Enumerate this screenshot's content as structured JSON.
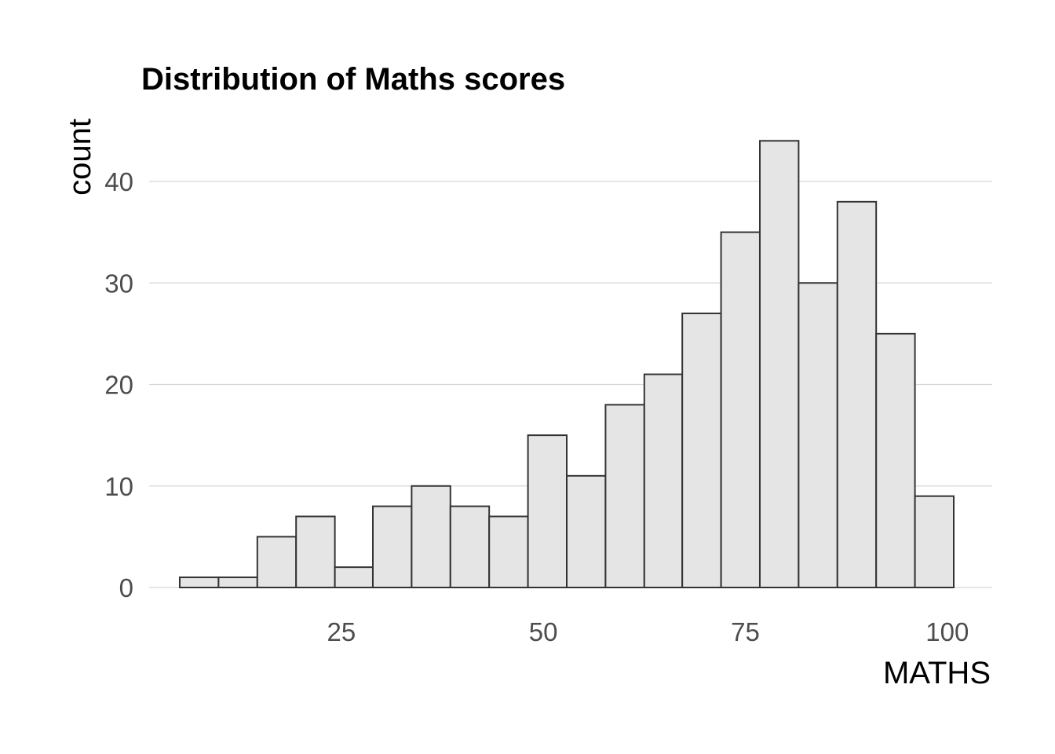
{
  "chart_data": {
    "type": "bar",
    "title": "Distribution of Maths scores",
    "xlabel": "MATHS",
    "ylabel": "count",
    "xlim": [
      3,
      104
    ],
    "ylim": [
      0,
      46
    ],
    "x_ticks": [
      25,
      50,
      75,
      100
    ],
    "y_ticks": [
      0,
      10,
      20,
      30,
      40
    ],
    "grid": "horizontal",
    "bins": [
      {
        "x0": 5.0,
        "x1": 9.8,
        "count": 1
      },
      {
        "x0": 9.8,
        "x1": 14.6,
        "count": 1
      },
      {
        "x0": 14.6,
        "x1": 19.4,
        "count": 5
      },
      {
        "x0": 19.4,
        "x1": 24.2,
        "count": 7
      },
      {
        "x0": 24.2,
        "x1": 28.9,
        "count": 2
      },
      {
        "x0": 28.9,
        "x1": 33.7,
        "count": 8
      },
      {
        "x0": 33.7,
        "x1": 38.5,
        "count": 10
      },
      {
        "x0": 38.5,
        "x1": 43.3,
        "count": 8
      },
      {
        "x0": 43.3,
        "x1": 48.1,
        "count": 7
      },
      {
        "x0": 48.1,
        "x1": 52.9,
        "count": 15
      },
      {
        "x0": 52.9,
        "x1": 57.7,
        "count": 11
      },
      {
        "x0": 57.7,
        "x1": 62.5,
        "count": 18
      },
      {
        "x0": 62.5,
        "x1": 67.2,
        "count": 21
      },
      {
        "x0": 67.2,
        "x1": 72.0,
        "count": 27
      },
      {
        "x0": 72.0,
        "x1": 76.8,
        "count": 35
      },
      {
        "x0": 76.8,
        "x1": 81.6,
        "count": 44
      },
      {
        "x0": 81.6,
        "x1": 86.4,
        "count": 30
      },
      {
        "x0": 86.4,
        "x1": 91.2,
        "count": 38
      },
      {
        "x0": 91.2,
        "x1": 96.0,
        "count": 25
      },
      {
        "x0": 96.0,
        "x1": 100.8,
        "count": 9
      }
    ]
  }
}
